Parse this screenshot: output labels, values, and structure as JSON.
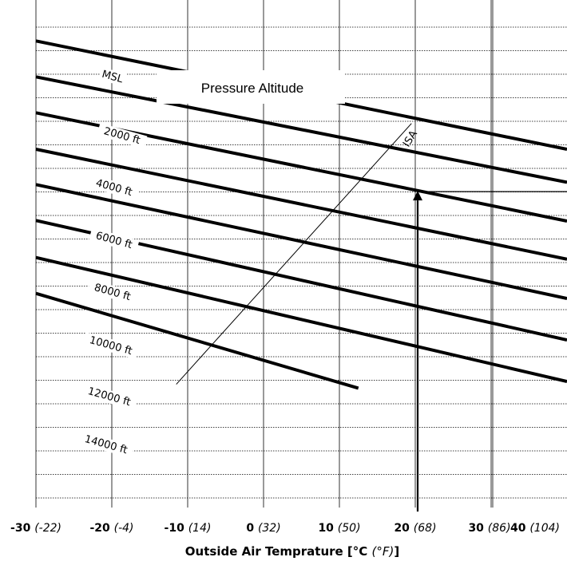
{
  "chart_data": {
    "type": "line",
    "title": "Pressure Altitude",
    "xlabel": {
      "main": "Outside Air Temprature [°C ",
      "unit_f": "(°F)",
      "close": "]"
    },
    "ylabel": "",
    "xlim": [
      -30,
      40
    ],
    "grid": true,
    "x_ticks": [
      {
        "c": "-30",
        "f": "(-22)",
        "x": -30
      },
      {
        "c": "-20",
        "f": "(-4)",
        "x": -20
      },
      {
        "c": "-10",
        "f": "(14)",
        "x": -10
      },
      {
        "c": "0",
        "f": "(32)",
        "x": 0
      },
      {
        "c": "10",
        "f": "(50)",
        "x": 10
      },
      {
        "c": "20",
        "f": "(68)",
        "x": 20
      },
      {
        "c": "30",
        "f": "(86)",
        "x": 30
      },
      {
        "c": "40",
        "f": "(104)",
        "x": 40
      }
    ],
    "series": [
      {
        "name": "MSL",
        "x": [
          -30,
          40
        ],
        "y": [
          7.3,
          26.6
        ]
      },
      {
        "name": "2000 ft",
        "x": [
          -30,
          40
        ],
        "y": [
          13.7,
          32.5
        ]
      },
      {
        "name": "4000 ft",
        "x": [
          -30,
          40
        ],
        "y": [
          20.1,
          39.4
        ]
      },
      {
        "name": "6000 ft",
        "x": [
          -30,
          40
        ],
        "y": [
          26.6,
          46.2
        ]
      },
      {
        "name": "8000 ft",
        "x": [
          -30,
          40
        ],
        "y": [
          32.9,
          53.2
        ]
      },
      {
        "name": "10000 ft",
        "x": [
          -30,
          40
        ],
        "y": [
          39.3,
          60.6
        ]
      },
      {
        "name": "12000 ft",
        "x": [
          -30,
          40
        ],
        "y": [
          45.9,
          68.0
        ]
      },
      {
        "name": "14000 ft",
        "x": [
          -30,
          12.5
        ],
        "y": [
          52.3,
          69.2
        ]
      }
    ],
    "isa_line": {
      "label": "ISA",
      "x": [
        -11.5,
        19.5
      ],
      "y": [
        68.5,
        22.0
      ]
    },
    "example_path": {
      "temperature_c": 20,
      "level": 34.3
    }
  }
}
